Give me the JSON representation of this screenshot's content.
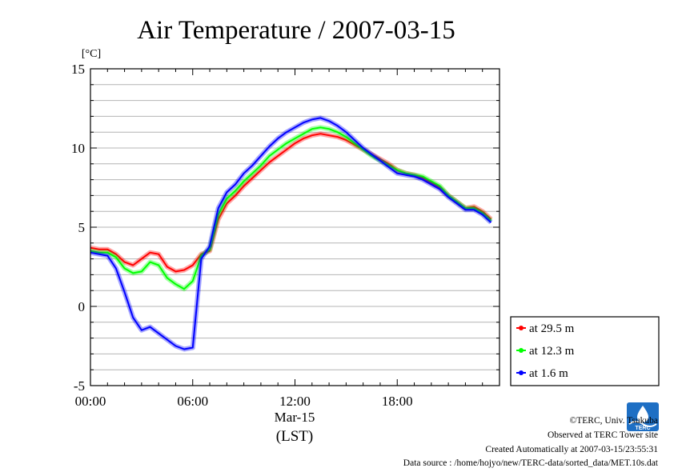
{
  "chart_data": {
    "type": "line",
    "title": "Air Temperature / 2007-03-15",
    "ylabel": "[°C]",
    "xlabel": "Mar-15",
    "xlabel2": "(LST)",
    "xlim": [
      0,
      24
    ],
    "ylim": [
      -5,
      15
    ],
    "yticks": [
      -5,
      0,
      5,
      10,
      15
    ],
    "xticks": [
      {
        "x": 0,
        "label": "00:00"
      },
      {
        "x": 6,
        "label": "06:00"
      },
      {
        "x": 12,
        "label": "12:00"
      },
      {
        "x": 18,
        "label": "18:00"
      }
    ],
    "grid": true,
    "legend_position": "right",
    "series": [
      {
        "name": "at 29.5 m",
        "color": "#ff0000",
        "x": [
          0,
          0.5,
          1,
          1.5,
          2,
          2.5,
          3,
          3.5,
          4,
          4.5,
          5,
          5.5,
          6,
          6.5,
          7,
          7.5,
          8,
          8.5,
          9,
          9.5,
          10,
          10.5,
          11,
          11.5,
          12,
          12.5,
          13,
          13.5,
          14,
          14.5,
          15,
          15.5,
          16,
          16.5,
          17,
          17.5,
          18,
          18.5,
          19,
          19.5,
          20,
          20.5,
          21,
          21.5,
          22,
          22.5,
          23,
          23.5
        ],
        "y": [
          3.7,
          3.6,
          3.6,
          3.3,
          2.8,
          2.6,
          3.0,
          3.4,
          3.3,
          2.5,
          2.2,
          2.3,
          2.6,
          3.3,
          3.5,
          5.5,
          6.5,
          7.0,
          7.6,
          8.1,
          8.6,
          9.1,
          9.5,
          9.9,
          10.3,
          10.6,
          10.8,
          10.9,
          10.8,
          10.7,
          10.5,
          10.2,
          9.9,
          9.6,
          9.3,
          9.0,
          8.6,
          8.4,
          8.3,
          8.1,
          7.8,
          7.5,
          7.0,
          6.6,
          6.2,
          6.3,
          6.0,
          5.5
        ]
      },
      {
        "name": "at 12.3 m",
        "color": "#00ff00",
        "x": [
          0,
          0.5,
          1,
          1.5,
          2,
          2.5,
          3,
          3.5,
          4,
          4.5,
          5,
          5.5,
          6,
          6.5,
          7,
          7.5,
          8,
          8.5,
          9,
          9.5,
          10,
          10.5,
          11,
          11.5,
          12,
          12.5,
          13,
          13.5,
          14,
          14.5,
          15,
          15.5,
          16,
          16.5,
          17,
          17.5,
          18,
          18.5,
          19,
          19.5,
          20,
          20.5,
          21,
          21.5,
          22,
          22.5,
          23,
          23.5
        ],
        "y": [
          3.5,
          3.4,
          3.4,
          3.1,
          2.4,
          2.1,
          2.2,
          2.8,
          2.6,
          1.8,
          1.4,
          1.1,
          1.6,
          3.2,
          3.6,
          5.8,
          6.8,
          7.3,
          7.9,
          8.4,
          8.9,
          9.5,
          9.9,
          10.3,
          10.6,
          10.9,
          11.2,
          11.3,
          11.2,
          11.0,
          10.7,
          10.3,
          9.9,
          9.5,
          9.2,
          8.9,
          8.6,
          8.4,
          8.3,
          8.2,
          7.9,
          7.6,
          7.0,
          6.6,
          6.2,
          6.2,
          5.9,
          5.4
        ]
      },
      {
        "name": "at 1.6 m",
        "color": "#0000ff",
        "x": [
          0,
          0.5,
          1,
          1.5,
          2,
          2.5,
          3,
          3.5,
          4,
          4.5,
          5,
          5.5,
          6,
          6.5,
          7,
          7.5,
          8,
          8.5,
          9,
          9.5,
          10,
          10.5,
          11,
          11.5,
          12,
          12.5,
          13,
          13.5,
          14,
          14.5,
          15,
          15.5,
          16,
          16.5,
          17,
          17.5,
          18,
          18.5,
          19,
          19.5,
          20,
          20.5,
          21,
          21.5,
          22,
          22.5,
          23,
          23.5
        ],
        "y": [
          3.4,
          3.3,
          3.2,
          2.4,
          0.9,
          -0.7,
          -1.5,
          -1.3,
          -1.7,
          -2.1,
          -2.5,
          -2.7,
          -2.6,
          3.0,
          3.8,
          6.2,
          7.2,
          7.7,
          8.4,
          8.9,
          9.5,
          10.1,
          10.6,
          11.0,
          11.3,
          11.6,
          11.8,
          11.9,
          11.7,
          11.4,
          11.0,
          10.5,
          10.0,
          9.6,
          9.2,
          8.8,
          8.4,
          8.3,
          8.2,
          8.0,
          7.7,
          7.4,
          6.9,
          6.5,
          6.1,
          6.1,
          5.8,
          5.3
        ]
      }
    ]
  },
  "footer": {
    "copyright": "©TERC, Univ. Tsukuba",
    "site": "Observed at TERC Tower site",
    "created": "Created Automatically at 2007-03-15/23:55:31",
    "source": "Data source : /home/hojyo/new/TERC-data/sorted_data/MET.10s.dat"
  },
  "logo": {
    "text": "TERC",
    "color": "#1e6fc4"
  }
}
